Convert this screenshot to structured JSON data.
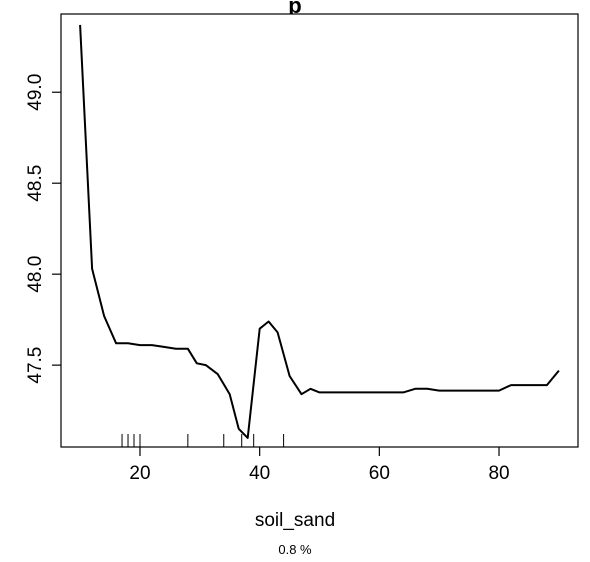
{
  "chart_data": {
    "type": "line",
    "title": "p",
    "xlabel": "soil_sand",
    "subtitle": "0.8 %",
    "ylabel": "",
    "xlim": [
      6.8,
      93.2
    ],
    "ylim": [
      47.05,
      49.43
    ],
    "x_ticks": [
      20,
      40,
      60,
      80
    ],
    "x_tick_labels": [
      "20",
      "40",
      "60",
      "80"
    ],
    "y_ticks": [
      47.5,
      48.0,
      48.5,
      49.0
    ],
    "y_tick_labels": [
      "47.5",
      "48.0",
      "48.5",
      "49.0"
    ],
    "grid": false,
    "series": [
      {
        "x": [
          10,
          12,
          14,
          16,
          18,
          20,
          22,
          24,
          26,
          28,
          29.5,
          31,
          33,
          35,
          36.5,
          38,
          40,
          41.5,
          43,
          45,
          47,
          48.5,
          50,
          52,
          54,
          56,
          58,
          60,
          62,
          64,
          66,
          68,
          70,
          72,
          74,
          76,
          78,
          80,
          82,
          84,
          86,
          88,
          90
        ],
        "y": [
          49.37,
          48.03,
          47.77,
          47.62,
          47.62,
          47.61,
          47.61,
          47.6,
          47.59,
          47.59,
          47.51,
          47.5,
          47.45,
          47.34,
          47.15,
          47.1,
          47.7,
          47.74,
          47.68,
          47.44,
          47.34,
          47.37,
          47.35,
          47.35,
          47.35,
          47.35,
          47.35,
          47.35,
          47.35,
          47.35,
          47.37,
          47.37,
          47.36,
          47.36,
          47.36,
          47.36,
          47.36,
          47.36,
          47.39,
          47.39,
          47.39,
          47.39,
          47.47
        ]
      }
    ],
    "rug_x": [
      17,
      18,
      19,
      20,
      28,
      34,
      37,
      39,
      44
    ]
  }
}
